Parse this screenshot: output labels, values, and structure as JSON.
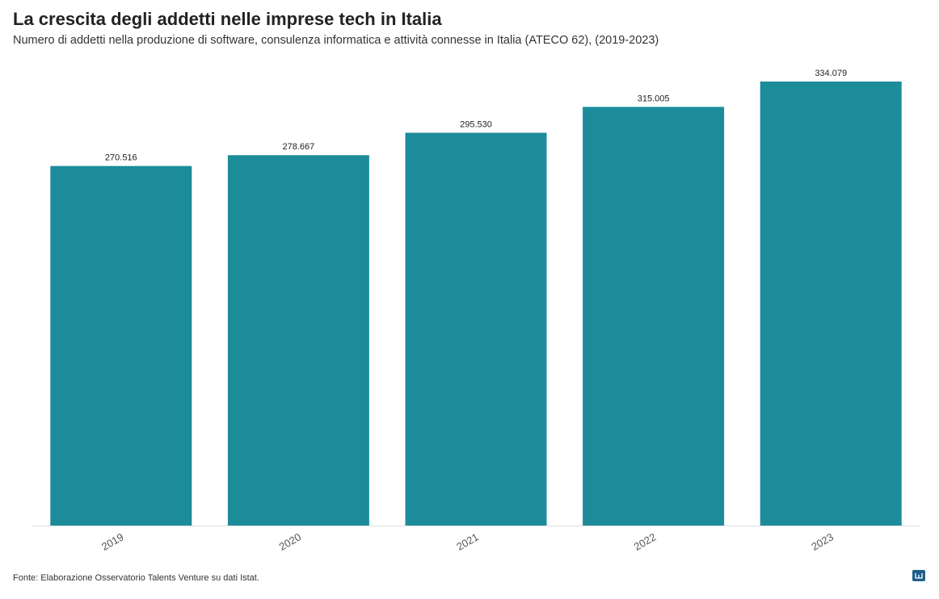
{
  "chart_data": {
    "type": "bar",
    "title": "La crescita degli addetti nelle imprese tech in Italia",
    "subtitle": "Numero di addetti nella produzione di software, consulenza informatica e attività connesse in Italia (ATECO 62), (2019-2023)",
    "categories": [
      "2019",
      "2020",
      "2021",
      "2022",
      "2023"
    ],
    "values": [
      270516,
      278667,
      295530,
      315005,
      334079
    ],
    "value_labels": [
      "270.516",
      "278.667",
      "295.530",
      "315.005",
      "334.079"
    ],
    "color": "#1c8c9b",
    "source": "Fonte: Elaborazione Osservatorio Talents Venture su dati Istat."
  }
}
